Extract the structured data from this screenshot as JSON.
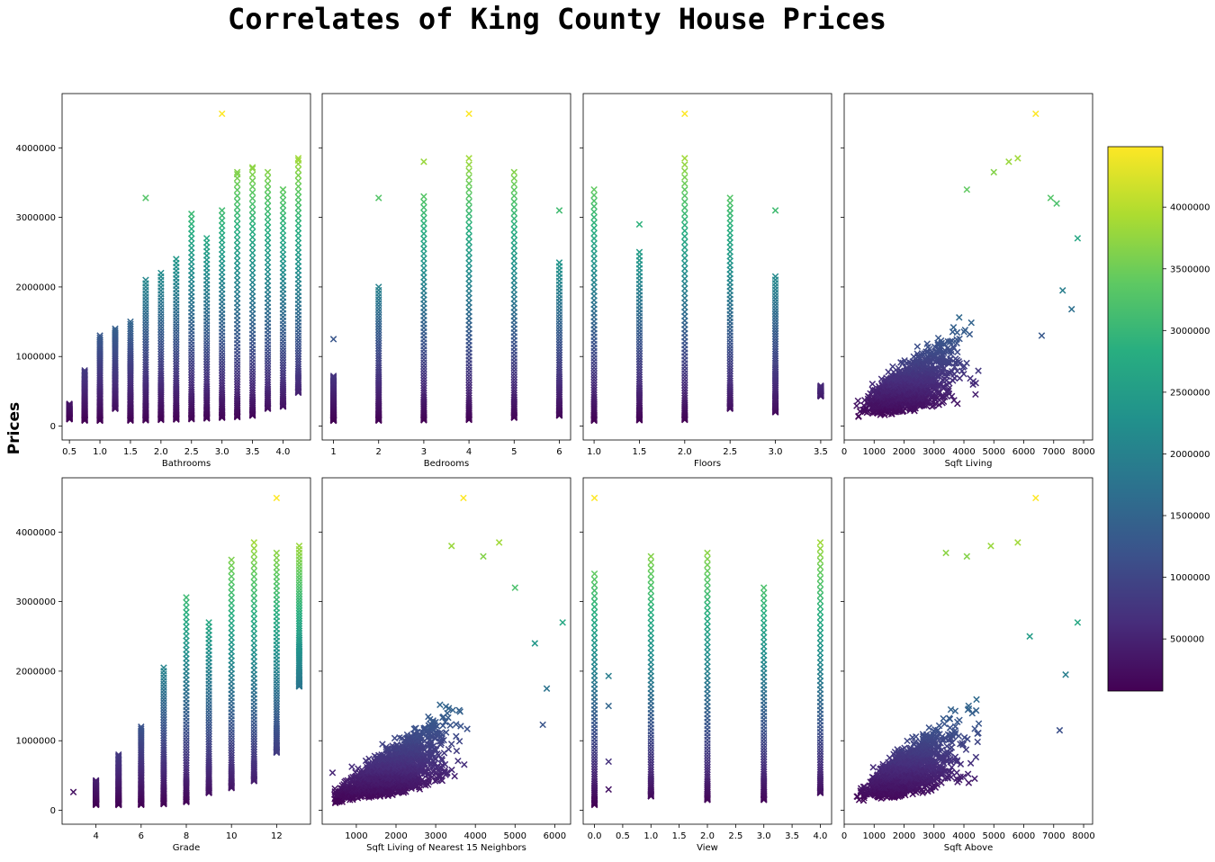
{
  "figure": {
    "title": "Correlates of King County House Prices",
    "ylabel": "Prices"
  },
  "colorbar": {
    "ticks": [
      500000,
      1000000,
      1500000,
      2000000,
      2500000,
      3000000,
      3500000,
      4000000
    ],
    "range": [
      78000,
      4490000
    ],
    "colormap": [
      "#440154",
      "#472d7b",
      "#3b528b",
      "#2c728e",
      "#21918c",
      "#28ae80",
      "#5ec962",
      "#addc30",
      "#fde725"
    ]
  },
  "chart_data": [
    {
      "type": "scatter",
      "xlabel": "Bathrooms",
      "marker": "x",
      "xlim": [
        0.38,
        4.45
      ],
      "ylim": [
        -200000,
        4780000
      ],
      "xticks": [
        "0.5",
        "1.0",
        "1.5",
        "2.0",
        "2.5",
        "3.0",
        "3.5",
        "4.0"
      ],
      "xtick_values": [
        0.5,
        1.0,
        1.5,
        2.0,
        2.5,
        3.0,
        3.5,
        4.0
      ],
      "yticks": [
        0,
        1000000,
        2000000,
        3000000,
        4000000
      ],
      "columns": [
        {
          "x": 0.5,
          "min": 100000,
          "max": 320000
        },
        {
          "x": 0.75,
          "min": 80000,
          "max": 800000
        },
        {
          "x": 1.0,
          "min": 78000,
          "max": 1300000
        },
        {
          "x": 1.25,
          "min": 250000,
          "max": 1400000
        },
        {
          "x": 1.5,
          "min": 80000,
          "max": 1500000
        },
        {
          "x": 1.75,
          "min": 85000,
          "max": 2100000
        },
        {
          "x": 2.0,
          "min": 90000,
          "max": 2200000
        },
        {
          "x": 2.25,
          "min": 95000,
          "max": 2400000
        },
        {
          "x": 2.5,
          "min": 100000,
          "max": 3050000
        },
        {
          "x": 2.75,
          "min": 110000,
          "max": 2700000
        },
        {
          "x": 3.0,
          "min": 120000,
          "max": 3100000
        },
        {
          "x": 3.25,
          "min": 130000,
          "max": 3650000
        },
        {
          "x": 3.5,
          "min": 150000,
          "max": 3700000
        },
        {
          "x": 3.75,
          "min": 250000,
          "max": 3650000
        },
        {
          "x": 4.0,
          "min": 280000,
          "max": 3400000
        },
        {
          "x": 4.25,
          "min": 480000,
          "max": 3850000
        }
      ],
      "points": [
        {
          "x": 3.0,
          "y": 4490000
        },
        {
          "x": 1.75,
          "y": 3280000
        },
        {
          "x": 3.25,
          "y": 3620000
        },
        {
          "x": 3.5,
          "y": 3720000
        },
        {
          "x": 4.25,
          "y": 3820000
        },
        {
          "x": 4.0,
          "y": 3400000
        }
      ]
    },
    {
      "type": "scatter",
      "xlabel": "Bedrooms",
      "marker": "x",
      "xlim": [
        0.75,
        6.25
      ],
      "ylim": [
        -200000,
        4780000
      ],
      "xticks": [
        "1",
        "2",
        "3",
        "4",
        "5",
        "6"
      ],
      "xtick_values": [
        1,
        2,
        3,
        4,
        5,
        6
      ],
      "yticks": [
        0,
        1000000,
        2000000,
        3000000,
        4000000
      ],
      "columns": [
        {
          "x": 1,
          "min": 78000,
          "max": 720000
        },
        {
          "x": 2,
          "min": 80000,
          "max": 2000000
        },
        {
          "x": 3,
          "min": 85000,
          "max": 3300000
        },
        {
          "x": 4,
          "min": 90000,
          "max": 3850000
        },
        {
          "x": 5,
          "min": 120000,
          "max": 3650000
        },
        {
          "x": 6,
          "min": 150000,
          "max": 2350000
        }
      ],
      "points": [
        {
          "x": 1,
          "y": 1250000
        },
        {
          "x": 2,
          "y": 3280000
        },
        {
          "x": 3,
          "y": 3800000
        },
        {
          "x": 4,
          "y": 4490000
        },
        {
          "x": 6,
          "y": 3100000
        }
      ]
    },
    {
      "type": "scatter",
      "xlabel": "Floors",
      "marker": "x",
      "xlim": [
        0.88,
        3.62
      ],
      "ylim": [
        -200000,
        4780000
      ],
      "xticks": [
        "1.0",
        "1.5",
        "2.0",
        "2.5",
        "3.0",
        "3.5"
      ],
      "xtick_values": [
        1.0,
        1.5,
        2.0,
        2.5,
        3.0,
        3.5
      ],
      "yticks": [
        0,
        1000000,
        2000000,
        3000000,
        4000000
      ],
      "columns": [
        {
          "x": 1.0,
          "min": 78000,
          "max": 3400000
        },
        {
          "x": 1.5,
          "min": 85000,
          "max": 2500000
        },
        {
          "x": 2.0,
          "min": 90000,
          "max": 3850000
        },
        {
          "x": 2.5,
          "min": 250000,
          "max": 3280000
        },
        {
          "x": 3.0,
          "min": 200000,
          "max": 2150000
        },
        {
          "x": 3.5,
          "min": 430000,
          "max": 580000
        }
      ],
      "points": [
        {
          "x": 2.0,
          "y": 4490000
        },
        {
          "x": 1.5,
          "y": 2900000
        },
        {
          "x": 3.0,
          "y": 3100000
        },
        {
          "x": 2.5,
          "y": 3060000
        }
      ]
    },
    {
      "type": "scatter",
      "xlabel": "Sqft Living",
      "marker": "x",
      "xlim": [
        0,
        8300
      ],
      "ylim": [
        -200000,
        4780000
      ],
      "xticks": [
        "0",
        "1000",
        "2000",
        "3000",
        "4000",
        "5000",
        "6000",
        "7000",
        "8000"
      ],
      "xtick_values": [
        0,
        1000,
        2000,
        3000,
        4000,
        5000,
        6000,
        7000,
        8000
      ],
      "yticks": [
        0,
        1000000,
        2000000,
        3000000,
        4000000
      ],
      "points": [
        {
          "x": 6400,
          "y": 4490000
        },
        {
          "x": 5800,
          "y": 3850000
        },
        {
          "x": 5500,
          "y": 3800000
        },
        {
          "x": 7800,
          "y": 2700000
        },
        {
          "x": 7100,
          "y": 3200000
        },
        {
          "x": 7600,
          "y": 1680000
        },
        {
          "x": 7300,
          "y": 1950000
        },
        {
          "x": 6600,
          "y": 1300000
        },
        {
          "x": 6900,
          "y": 3280000
        },
        {
          "x": 4100,
          "y": 3400000
        },
        {
          "x": 5000,
          "y": 3650000
        }
      ]
    },
    {
      "type": "scatter",
      "xlabel": "Grade",
      "marker": "x",
      "xlim": [
        2.5,
        13.5
      ],
      "ylim": [
        -200000,
        4780000
      ],
      "xticks": [
        "4",
        "6",
        "8",
        "10",
        "12"
      ],
      "xtick_values": [
        4,
        6,
        8,
        10,
        12
      ],
      "yticks": [
        0,
        1000000,
        2000000,
        3000000,
        4000000
      ],
      "columns": [
        {
          "x": 4,
          "min": 80000,
          "max": 430000
        },
        {
          "x": 5,
          "min": 78000,
          "max": 800000
        },
        {
          "x": 6,
          "min": 80000,
          "max": 1200000
        },
        {
          "x": 7,
          "min": 90000,
          "max": 2050000
        },
        {
          "x": 8,
          "min": 120000,
          "max": 3060000
        },
        {
          "x": 9,
          "min": 250000,
          "max": 2700000
        },
        {
          "x": 10,
          "min": 320000,
          "max": 3600000
        },
        {
          "x": 11,
          "min": 420000,
          "max": 3850000
        },
        {
          "x": 12,
          "min": 830000,
          "max": 3700000
        },
        {
          "x": 13,
          "min": 1780000,
          "max": 3800000
        }
      ],
      "points": [
        {
          "x": 3,
          "y": 262000
        },
        {
          "x": 12,
          "y": 4490000
        },
        {
          "x": 13,
          "y": 2350000
        },
        {
          "x": 13,
          "y": 2450000
        }
      ]
    },
    {
      "type": "scatter",
      "xlabel": "Sqft Living of Nearest 15 Neighbors",
      "marker": "x",
      "xlim": [
        140,
        6400
      ],
      "ylim": [
        -200000,
        4780000
      ],
      "xticks": [
        "1000",
        "2000",
        "3000",
        "4000",
        "5000",
        "6000"
      ],
      "xtick_values": [
        1000,
        2000,
        3000,
        4000,
        5000,
        6000
      ],
      "yticks": [
        0,
        1000000,
        2000000,
        3000000,
        4000000
      ],
      "points": [
        {
          "x": 3700,
          "y": 4490000
        },
        {
          "x": 4600,
          "y": 3850000
        },
        {
          "x": 3400,
          "y": 3800000
        },
        {
          "x": 4200,
          "y": 3650000
        },
        {
          "x": 6200,
          "y": 2700000
        },
        {
          "x": 5800,
          "y": 1750000
        },
        {
          "x": 5700,
          "y": 1230000
        },
        {
          "x": 5500,
          "y": 2400000
        },
        {
          "x": 5000,
          "y": 3200000
        },
        {
          "x": 400,
          "y": 540000
        }
      ]
    },
    {
      "type": "scatter",
      "xlabel": "View",
      "marker": "x",
      "xlim": [
        -0.2,
        4.2
      ],
      "ylim": [
        -200000,
        4780000
      ],
      "xticks": [
        "0.0",
        "0.5",
        "1.0",
        "1.5",
        "2.0",
        "2.5",
        "3.0",
        "3.5",
        "4.0"
      ],
      "xtick_values": [
        0.0,
        0.5,
        1.0,
        1.5,
        2.0,
        2.5,
        3.0,
        3.5,
        4.0
      ],
      "yticks": [
        0,
        1000000,
        2000000,
        3000000,
        4000000
      ],
      "columns": [
        {
          "x": 0.0,
          "min": 78000,
          "max": 3400000
        },
        {
          "x": 1.0,
          "min": 200000,
          "max": 3650000
        },
        {
          "x": 2.0,
          "min": 150000,
          "max": 3700000
        },
        {
          "x": 3.0,
          "min": 150000,
          "max": 3200000
        },
        {
          "x": 4.0,
          "min": 250000,
          "max": 3850000
        }
      ],
      "points": [
        {
          "x": 0.0,
          "y": 4490000
        },
        {
          "x": 0.25,
          "y": 1500000
        },
        {
          "x": 0.25,
          "y": 1930000
        },
        {
          "x": 0.25,
          "y": 700000
        },
        {
          "x": 0.25,
          "y": 300000
        }
      ]
    },
    {
      "type": "scatter",
      "xlabel": "Sqft Above",
      "marker": "x",
      "xlim": [
        0,
        8300
      ],
      "ylim": [
        -200000,
        4780000
      ],
      "xticks": [
        "0",
        "1000",
        "2000",
        "3000",
        "4000",
        "5000",
        "6000",
        "7000",
        "8000"
      ],
      "xtick_values": [
        0,
        1000,
        2000,
        3000,
        4000,
        5000,
        6000,
        7000,
        8000
      ],
      "yticks": [
        0,
        1000000,
        2000000,
        3000000,
        4000000
      ],
      "points": [
        {
          "x": 6400,
          "y": 4490000
        },
        {
          "x": 5800,
          "y": 3850000
        },
        {
          "x": 4900,
          "y": 3800000
        },
        {
          "x": 7800,
          "y": 2700000
        },
        {
          "x": 7400,
          "y": 1950000
        },
        {
          "x": 7200,
          "y": 1150000
        },
        {
          "x": 6200,
          "y": 2500000
        },
        {
          "x": 4100,
          "y": 3650000
        },
        {
          "x": 3400,
          "y": 3700000
        }
      ]
    }
  ]
}
